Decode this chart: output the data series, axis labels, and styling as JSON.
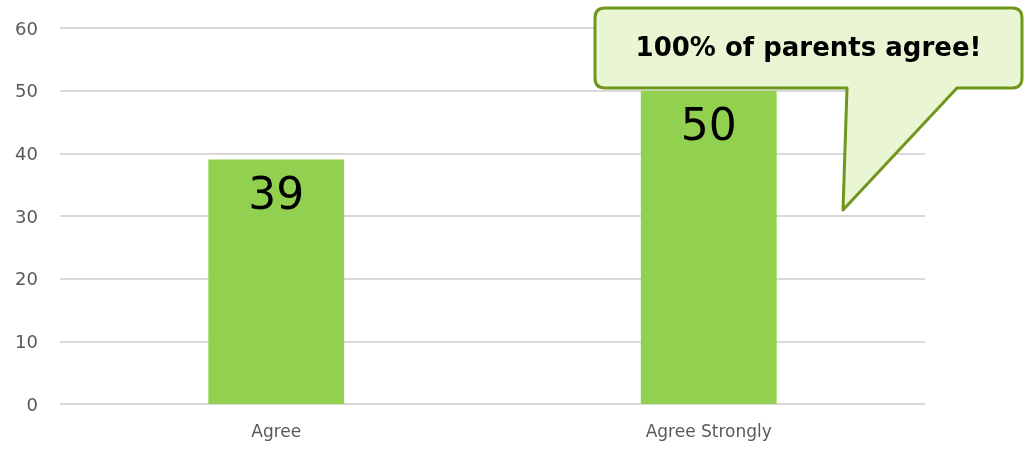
{
  "chart_data": {
    "type": "bar",
    "categories": [
      "Agree",
      "Agree Strongly"
    ],
    "values": [
      39,
      50
    ],
    "color": "#92d050",
    "ylim": [
      0,
      60
    ],
    "yticks": [
      0,
      10,
      20,
      30,
      40,
      50,
      60
    ],
    "grid": "y",
    "data_labels": true,
    "annotations": [
      "100% of parents agree!"
    ]
  }
}
